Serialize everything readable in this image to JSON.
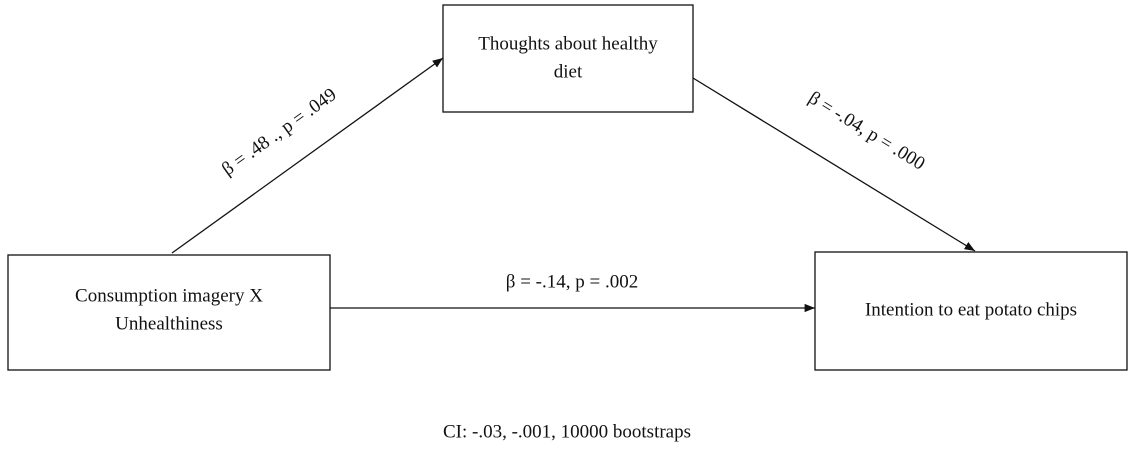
{
  "nodes": [
    {
      "lines": [
        "Thoughts about healthy",
        "diet"
      ]
    },
    {
      "lines": [
        "Consumption imagery X",
        "Unhealthiness"
      ]
    },
    {
      "lines": [
        "Intention to eat potato chips"
      ]
    }
  ],
  "edges": [
    {
      "label": "β = .48 ., p = .049"
    },
    {
      "label": "β = -.04, p = .000"
    },
    {
      "label": "β = -.14, p = .002"
    }
  ],
  "footer": "CI: -.03, -.001, 10000 bootstraps"
}
